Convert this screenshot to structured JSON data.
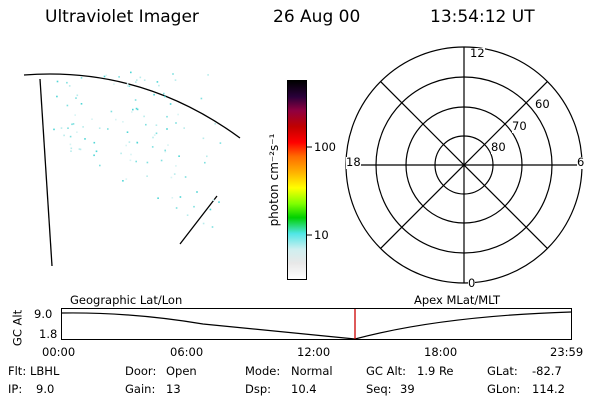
{
  "header": {
    "title": "Ultraviolet Imager",
    "date": "26 Aug 00",
    "time": "13:54:12 UT"
  },
  "colorbar": {
    "unit_label": "photon cm⁻²s⁻¹",
    "ticks": [
      "100",
      "10"
    ],
    "colors": [
      "#ffffff",
      "#e8e8e8",
      "#cfeff0",
      "#4fe6e6",
      "#00d000",
      "#7fff00",
      "#ffff00",
      "#ffb000",
      "#ff6a00",
      "#ff0000",
      "#c00000",
      "#900040",
      "#2a003a",
      "#000000"
    ]
  },
  "polar_plot": {
    "mlt_labels": {
      "top": "12",
      "left": "18",
      "right": "6",
      "bottom": "0"
    },
    "lat_labels": [
      "60",
      "70",
      "80"
    ]
  },
  "timeline": {
    "left_title": "Geographic Lat/Lon",
    "right_title": "Apex MLat/MLT",
    "axis_label": "GC Alt",
    "y_ticks": [
      "9.0",
      "1.8"
    ],
    "x_ticks": [
      "00:00",
      "06:00",
      "12:00",
      "18:00",
      "23:59"
    ],
    "marker_time": "13:54",
    "marker_color": "#cc0000"
  },
  "status": {
    "row1": [
      {
        "key": "Flt:",
        "value": "LBHL"
      },
      {
        "key": "Door:",
        "value": "Open"
      },
      {
        "key": "Mode:",
        "value": "Normal"
      },
      {
        "key": "GC Alt:",
        "value": "1.9 Re"
      },
      {
        "key": "GLat:",
        "value": "-82.7"
      }
    ],
    "row2": [
      {
        "key": "IP:",
        "value": "9.0"
      },
      {
        "key": "Gain:",
        "value": "13"
      },
      {
        "key": "Dsp:",
        "value": "10.4"
      },
      {
        "key": "Seq:",
        "value": "39"
      },
      {
        "key": "GLon:",
        "value": "114.2"
      }
    ]
  }
}
